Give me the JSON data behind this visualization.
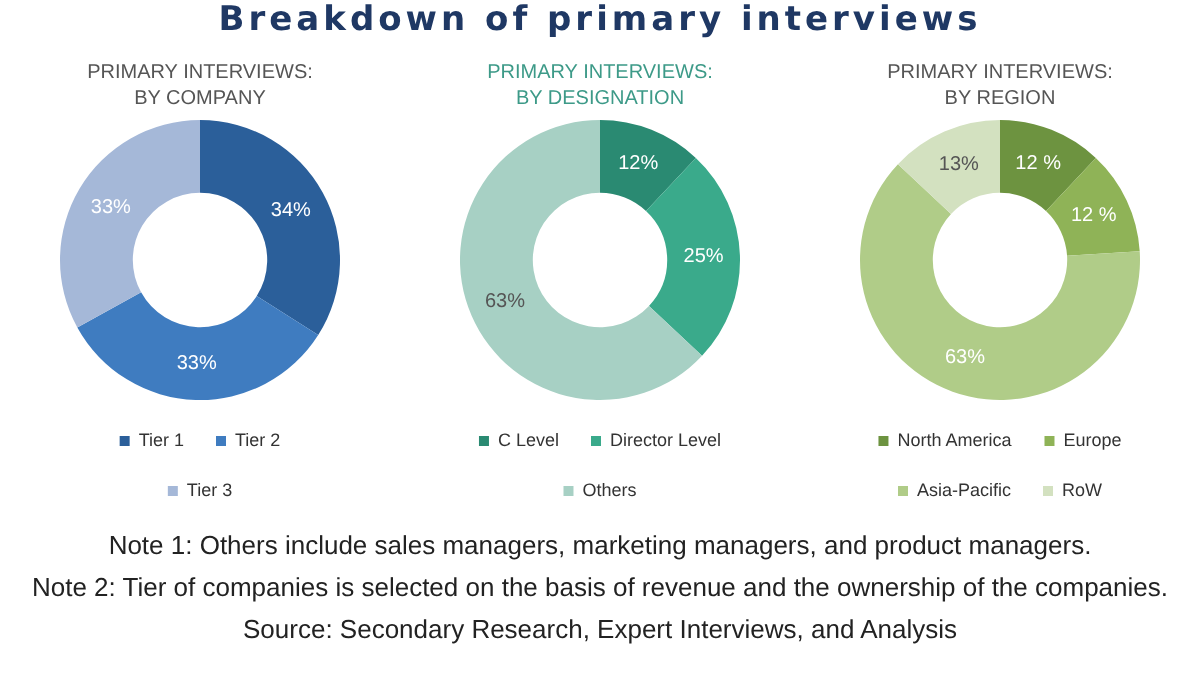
{
  "chart_data": [
    {
      "type": "other",
      "title": "Breakdown of primary interviews"
    },
    {
      "type": "donut",
      "title": "PRIMARY INTERVIEWS: BY COMPANY",
      "categories": [
        "Tier 1",
        "Tier 2",
        "Tier 3"
      ],
      "values": [
        34,
        33,
        33
      ],
      "colors": [
        "#2b5f9a",
        "#3f7cc0",
        "#a5b8d8"
      ],
      "value_labels": [
        "34%",
        "33%",
        "33%"
      ],
      "legend": "bottom"
    },
    {
      "type": "donut",
      "title": "PRIMARY INTERVIEWS: BY DESIGNATION",
      "categories": [
        "C Level",
        "Director Level",
        "Others"
      ],
      "values": [
        12,
        25,
        63
      ],
      "colors": [
        "#2a8a72",
        "#3aaa8b",
        "#a7d0c4"
      ],
      "value_labels": [
        "12%",
        "25%",
        "63%"
      ],
      "legend": "bottom"
    },
    {
      "type": "donut",
      "title": "PRIMARY INTERVIEWS: BY REGION",
      "categories": [
        "North America",
        "Europe",
        "Asia-Pacific",
        "RoW"
      ],
      "values": [
        12,
        12,
        63,
        13
      ],
      "colors": [
        "#6d9340",
        "#8fb357",
        "#b0cc88",
        "#d3e1c0"
      ],
      "value_labels": [
        "12 %",
        "12 %",
        "63%",
        "13%"
      ],
      "legend": "bottom"
    },
    {
      "type": "other",
      "annotations": [
        "Note 1: Others include sales managers, marketing managers, and product managers.",
        "Note 2: Tier of companies is selected on the basis of revenue and the ownership of the companies.",
        "Source: Secondary Research, Expert Interviews, and Analysis"
      ]
    }
  ]
}
